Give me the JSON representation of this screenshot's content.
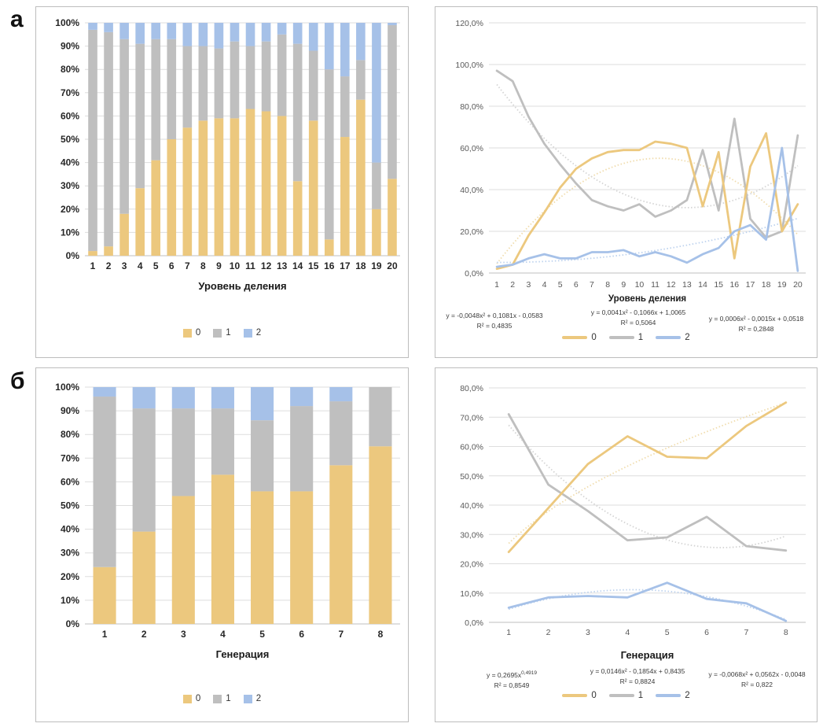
{
  "labels": {
    "a": "а",
    "b": "б"
  },
  "colors": {
    "series": [
      "#ECC87E",
      "#BFBFBF",
      "#A6C1E8"
    ],
    "trend": [
      "#F0DCAC",
      "#D4D4D4",
      "#BDD2EE"
    ],
    "grid": "#DEDEDE",
    "baseline": "#BFBFBF"
  },
  "chart_data": [
    {
      "id": "bars-level",
      "type": "bar",
      "xlabel": "Уровень деления",
      "categories": [
        1,
        2,
        3,
        4,
        5,
        6,
        7,
        8,
        9,
        10,
        11,
        12,
        13,
        14,
        15,
        16,
        17,
        18,
        19,
        20
      ],
      "series": [
        {
          "name": "0",
          "values": [
            2,
            4,
            18,
            29,
            41,
            50,
            55,
            58,
            59,
            59,
            63,
            62,
            60,
            32,
            58,
            7,
            51,
            67,
            20,
            33
          ]
        },
        {
          "name": "1",
          "values": [
            95,
            92,
            75,
            62,
            52,
            43,
            35,
            32,
            30,
            33,
            27,
            30,
            35,
            59,
            30,
            73,
            26,
            17,
            20,
            66
          ]
        },
        {
          "name": "2",
          "values": [
            3,
            4,
            7,
            9,
            7,
            7,
            10,
            10,
            11,
            8,
            10,
            8,
            5,
            9,
            12,
            20,
            23,
            16,
            60,
            1
          ]
        }
      ],
      "y_ticks": [
        "0%",
        "10%",
        "20%",
        "30%",
        "40%",
        "50%",
        "60%",
        "70%",
        "80%",
        "90%",
        "100%"
      ],
      "ylim": [
        0,
        100
      ],
      "legend": [
        "0",
        "1",
        "2"
      ]
    },
    {
      "id": "lines-level",
      "type": "line",
      "xlabel": "Уровень деления",
      "categories": [
        1,
        2,
        3,
        4,
        5,
        6,
        7,
        8,
        9,
        10,
        11,
        12,
        13,
        14,
        15,
        16,
        17,
        18,
        19,
        20
      ],
      "series": [
        {
          "name": "0",
          "values": [
            2,
            4,
            18,
            29,
            41,
            50,
            55,
            58,
            59,
            59,
            63,
            62,
            60,
            32,
            58,
            7,
            51,
            67,
            20,
            33
          ]
        },
        {
          "name": "1",
          "values": [
            97,
            92,
            75,
            62,
            52,
            43,
            35,
            32,
            30,
            33,
            27,
            30,
            35,
            59,
            30,
            74,
            26,
            17,
            20,
            66
          ]
        },
        {
          "name": "2",
          "values": [
            3,
            4,
            7,
            9,
            7,
            7,
            10,
            10,
            11,
            8,
            10,
            8,
            5,
            9,
            12,
            20,
            23,
            16,
            60,
            1
          ]
        }
      ],
      "y_ticks": [
        "0,0%",
        "20,0%",
        "40,0%",
        "60,0%",
        "80,0%",
        "100,0%",
        "120,0%"
      ],
      "ylim": [
        0,
        120
      ],
      "legend": [
        "0",
        "1",
        "2"
      ],
      "equations": [
        {
          "text": "y = -0,0048x² + 0,1081x - 0,0583",
          "r2": "R² = 0,4835"
        },
        {
          "text": "y = 0,0041x² - 0,1066x + 1,0065",
          "r2": "R² = 0,5064"
        },
        {
          "text": "y = 0,0006x² - 0,0015x + 0,0518",
          "r2": "R² = 0,2848"
        }
      ],
      "trendlines": [
        {
          "type": "poly2",
          "a": -0.0048,
          "b": 0.1081,
          "c": -0.0583
        },
        {
          "type": "poly2",
          "a": 0.0041,
          "b": -0.1066,
          "c": 1.0065
        },
        {
          "type": "poly2",
          "a": 0.0006,
          "b": -0.0015,
          "c": 0.0518
        }
      ]
    },
    {
      "id": "bars-gen",
      "type": "bar",
      "xlabel": "Генерация",
      "categories": [
        1,
        2,
        3,
        4,
        5,
        6,
        7,
        8
      ],
      "series": [
        {
          "name": "0",
          "values": [
            24,
            39,
            54,
            63,
            56,
            56,
            67,
            75
          ]
        },
        {
          "name": "1",
          "values": [
            72,
            52,
            37,
            28,
            30,
            36,
            27,
            25
          ]
        },
        {
          "name": "2",
          "values": [
            4,
            9,
            9,
            9,
            14,
            8,
            6,
            0
          ]
        }
      ],
      "y_ticks": [
        "0%",
        "10%",
        "20%",
        "30%",
        "40%",
        "50%",
        "60%",
        "70%",
        "80%",
        "90%",
        "100%"
      ],
      "ylim": [
        0,
        100
      ],
      "legend": [
        "0",
        "1",
        "2"
      ]
    },
    {
      "id": "lines-gen",
      "type": "line",
      "xlabel": "Генерация",
      "categories": [
        1,
        2,
        3,
        4,
        5,
        6,
        7,
        8
      ],
      "series": [
        {
          "name": "0",
          "values": [
            24,
            39,
            54,
            63.5,
            56.5,
            56,
            67,
            75
          ]
        },
        {
          "name": "1",
          "values": [
            71,
            47,
            38,
            28,
            29,
            36,
            26,
            24.5
          ]
        },
        {
          "name": "2",
          "values": [
            5,
            8.5,
            9,
            8.5,
            13.5,
            8,
            6.5,
            0.5
          ]
        }
      ],
      "y_ticks": [
        "0,0%",
        "10,0%",
        "20,0%",
        "30,0%",
        "40,0%",
        "50,0%",
        "60,0%",
        "70,0%",
        "80,0%"
      ],
      "ylim": [
        0,
        80
      ],
      "legend": [
        "0",
        "1",
        "2"
      ],
      "equations": [
        {
          "text": "y = 0,2695x^0,4919",
          "r2": "R² = 0,8549"
        },
        {
          "text": "y = 0,0146x² - 0,1854x + 0,8435",
          "r2": "R² = 0,8824"
        },
        {
          "text": "y = -0,0068x² + 0,0562x - 0,0048",
          "r2": "R² = 0,822"
        }
      ],
      "trendlines": [
        {
          "type": "power",
          "a": 0.2695,
          "b": 0.4919
        },
        {
          "type": "poly2",
          "a": 0.0146,
          "b": -0.1854,
          "c": 0.8435
        },
        {
          "type": "poly2",
          "a": -0.0068,
          "b": 0.0562,
          "c": -0.0048
        }
      ]
    }
  ]
}
